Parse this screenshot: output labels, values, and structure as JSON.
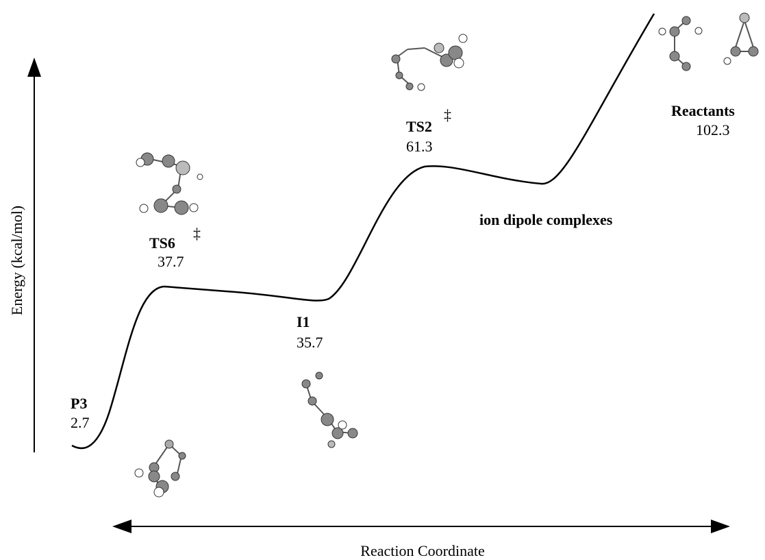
{
  "axes": {
    "y_label": "Energy (kcal/mol)",
    "x_label": "Reaction Coordinate"
  },
  "states": [
    {
      "label": "P3",
      "energy": 2.7
    },
    {
      "label": "TS6",
      "mark": "‡",
      "energy": 37.7
    },
    {
      "label": "I1",
      "energy": 35.7
    },
    {
      "label": "TS2",
      "mark": "‡",
      "energy": 61.3
    },
    {
      "label": "Reactants",
      "energy": 102.3
    }
  ],
  "annotations": [
    "ion dipole complexes"
  ]
}
